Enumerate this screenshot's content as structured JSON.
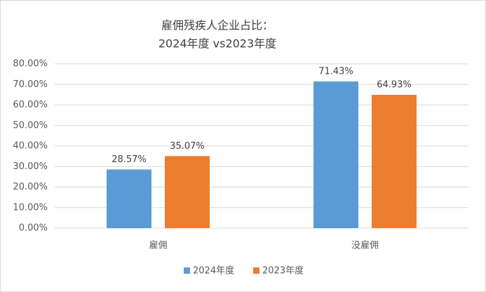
{
  "chart_data": {
    "type": "bar",
    "title": "雇佣残疾人企业占比：",
    "subtitle": "2024年度 vs2023年度",
    "categories": [
      "雇佣",
      "没雇佣"
    ],
    "series": [
      {
        "name": "2024年度",
        "color": "#5b9bd5",
        "values": [
          28.57,
          71.43
        ],
        "value_labels": [
          "28.57%",
          "71.43%"
        ]
      },
      {
        "name": "2023年度",
        "color": "#ed7d31",
        "values": [
          35.07,
          64.93
        ],
        "value_labels": [
          "35.07%",
          "64.93%"
        ]
      }
    ],
    "ylim": [
      0,
      80
    ],
    "yticks": [
      {
        "value": 0,
        "label": "0.00%"
      },
      {
        "value": 10,
        "label": "10.00%"
      },
      {
        "value": 20,
        "label": "20.00%"
      },
      {
        "value": 30,
        "label": "30.00%"
      },
      {
        "value": 40,
        "label": "40.00%"
      },
      {
        "value": 50,
        "label": "50.00%"
      },
      {
        "value": 60,
        "label": "60.00%"
      },
      {
        "value": 70,
        "label": "70.00%"
      },
      {
        "value": 80,
        "label": "80.00%"
      }
    ],
    "grid": true,
    "legend": "bottom"
  }
}
